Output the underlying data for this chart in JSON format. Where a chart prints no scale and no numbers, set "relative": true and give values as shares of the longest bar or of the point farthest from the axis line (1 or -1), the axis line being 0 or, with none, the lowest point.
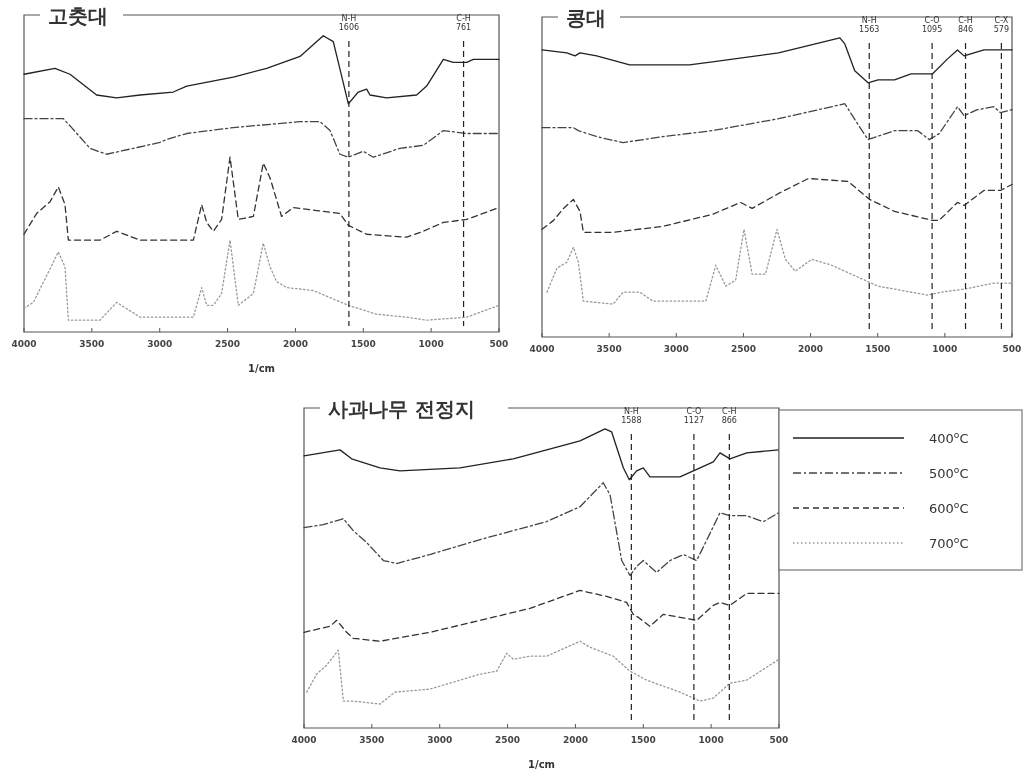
{
  "chart_data": [
    {
      "type": "line",
      "title": "고춧대",
      "xlabel": "1/cm",
      "relative": true,
      "xlim": [
        4000,
        500
      ],
      "xticks": [
        4000,
        3500,
        3000,
        2500,
        2000,
        1500,
        1000,
        500
      ],
      "legend": false,
      "ref_lines": [
        {
          "axis": "x",
          "value": 1606,
          "label": "N-H\n1606",
          "color": "#222222",
          "line_style": "dashed"
        },
        {
          "axis": "x",
          "value": 761,
          "label": "C-H\n761",
          "color": "#222222",
          "line_style": "dashed"
        }
      ],
      "series": [
        {
          "color": "#222222",
          "line_style": "solid",
          "x": [
            4000,
            3772,
            3661,
            3465,
            3317,
            3145,
            2900,
            2801,
            2458,
            2212,
            1966,
            1795,
            1721,
            1610,
            1537,
            1475,
            1451,
            1328,
            1107,
            1033,
            910,
            837,
            738,
            689,
            500
          ],
          "values": [
            0.87,
            0.89,
            0.87,
            0.8,
            0.79,
            0.8,
            0.81,
            0.83,
            0.86,
            0.89,
            0.93,
            1.0,
            0.98,
            0.77,
            0.81,
            0.82,
            0.8,
            0.79,
            0.8,
            0.83,
            0.92,
            0.91,
            0.91,
            0.92,
            0.92
          ]
        },
        {
          "color": "#444444",
          "line_style": "dashdot",
          "x": [
            4000,
            3710,
            3649,
            3514,
            3391,
            3194,
            2998,
            2949,
            2801,
            2458,
            1966,
            1819,
            1745,
            1672,
            1610,
            1500,
            1426,
            1230,
            1058,
            910,
            738,
            500
          ],
          "values": [
            0.72,
            0.72,
            0.69,
            0.62,
            0.6,
            0.62,
            0.64,
            0.65,
            0.67,
            0.69,
            0.71,
            0.71,
            0.68,
            0.6,
            0.59,
            0.61,
            0.59,
            0.62,
            0.63,
            0.68,
            0.67,
            0.67
          ]
        },
        {
          "color": "#333333",
          "line_style": "dashed",
          "x": [
            4000,
            3907,
            3808,
            3747,
            3698,
            3673,
            3440,
            3317,
            3145,
            2752,
            2691,
            2654,
            2605,
            2544,
            2482,
            2421,
            2310,
            2237,
            2187,
            2102,
            2016,
            1844,
            1672,
            1610,
            1475,
            1180,
            1058,
            910,
            738,
            500
          ],
          "values": [
            0.33,
            0.4,
            0.44,
            0.49,
            0.43,
            0.31,
            0.31,
            0.34,
            0.31,
            0.31,
            0.43,
            0.37,
            0.34,
            0.38,
            0.59,
            0.38,
            0.39,
            0.57,
            0.52,
            0.39,
            0.42,
            0.41,
            0.4,
            0.36,
            0.33,
            0.32,
            0.34,
            0.37,
            0.38,
            0.42
          ]
        },
        {
          "color": "#999999",
          "line_style": "dotted",
          "x": [
            4000,
            3931,
            3833,
            3747,
            3698,
            3673,
            3440,
            3317,
            3145,
            2752,
            2691,
            2654,
            2605,
            2544,
            2482,
            2421,
            2310,
            2237,
            2187,
            2139,
            2065,
            1868,
            1610,
            1402,
            1180,
            1033,
            738,
            500
          ],
          "values": [
            0.08,
            0.1,
            0.19,
            0.27,
            0.22,
            0.04,
            0.04,
            0.1,
            0.05,
            0.05,
            0.15,
            0.09,
            0.09,
            0.13,
            0.31,
            0.09,
            0.13,
            0.3,
            0.22,
            0.17,
            0.15,
            0.14,
            0.09,
            0.06,
            0.05,
            0.04,
            0.05,
            0.09
          ]
        }
      ]
    },
    {
      "type": "line",
      "title": "콩대",
      "relative": true,
      "xlim": [
        4000,
        500
      ],
      "xticks": [
        4000,
        3500,
        3000,
        2500,
        2000,
        1500,
        1000,
        500
      ],
      "legend": false,
      "ref_lines": [
        {
          "axis": "x",
          "value": 1563,
          "label": "N-H\n1563",
          "color": "#222222",
          "line_style": "dashed"
        },
        {
          "axis": "x",
          "value": 1095,
          "label": "C-O\n1095",
          "color": "#222222",
          "line_style": "dashed"
        },
        {
          "axis": "x",
          "value": 846,
          "label": "C-H\n846",
          "color": "#222222",
          "line_style": "dashed"
        },
        {
          "axis": "x",
          "value": 579,
          "label": "C-X\n579",
          "color": "#222222",
          "line_style": "dashed"
        }
      ],
      "series": [
        {
          "color": "#222222",
          "line_style": "solid",
          "x": [
            4000,
            3815,
            3754,
            3717,
            3593,
            3347,
            3100,
            2903,
            2731,
            2238,
            1782,
            1745,
            1671,
            1572,
            1498,
            1375,
            1252,
            1091,
            980,
            906,
            857,
            709,
            500
          ],
          "values": [
            0.96,
            0.95,
            0.94,
            0.95,
            0.94,
            0.91,
            0.91,
            0.91,
            0.92,
            0.95,
            1.0,
            0.98,
            0.89,
            0.85,
            0.86,
            0.86,
            0.88,
            0.88,
            0.93,
            0.96,
            0.94,
            0.96,
            0.96
          ]
        },
        {
          "color": "#444444",
          "line_style": "dashdot",
          "x": [
            4000,
            3840,
            3766,
            3729,
            3593,
            3396,
            3100,
            2731,
            2238,
            1745,
            1646,
            1572,
            1375,
            1202,
            1116,
            1042,
            906,
            857,
            758,
            635,
            586,
            500
          ],
          "values": [
            0.7,
            0.7,
            0.7,
            0.69,
            0.67,
            0.65,
            0.67,
            0.69,
            0.73,
            0.78,
            0.71,
            0.66,
            0.69,
            0.69,
            0.66,
            0.68,
            0.77,
            0.74,
            0.76,
            0.77,
            0.75,
            0.76
          ]
        },
        {
          "color": "#333333",
          "line_style": "dashed",
          "x": [
            4000,
            3914,
            3840,
            3766,
            3717,
            3692,
            3470,
            3100,
            2731,
            2521,
            2435,
            2238,
            2016,
            1720,
            1560,
            1375,
            1091,
            1042,
            906,
            857,
            709,
            586,
            500
          ],
          "values": [
            0.36,
            0.39,
            0.43,
            0.46,
            0.42,
            0.35,
            0.35,
            0.37,
            0.41,
            0.45,
            0.43,
            0.48,
            0.53,
            0.52,
            0.46,
            0.42,
            0.39,
            0.39,
            0.45,
            0.44,
            0.49,
            0.49,
            0.51
          ]
        },
        {
          "color": "#999999",
          "line_style": "dotted",
          "x": [
            3963,
            3889,
            3815,
            3766,
            3729,
            3692,
            3470,
            3396,
            3273,
            3174,
            2780,
            2706,
            2632,
            2558,
            2496,
            2435,
            2336,
            2250,
            2188,
            2114,
            1991,
            1843,
            1597,
            1498,
            1128,
            1030,
            857,
            635,
            500
          ],
          "values": [
            0.15,
            0.23,
            0.25,
            0.3,
            0.25,
            0.12,
            0.11,
            0.15,
            0.15,
            0.12,
            0.12,
            0.24,
            0.17,
            0.19,
            0.36,
            0.21,
            0.21,
            0.36,
            0.26,
            0.22,
            0.26,
            0.24,
            0.19,
            0.17,
            0.14,
            0.15,
            0.16,
            0.18,
            0.18
          ]
        }
      ]
    },
    {
      "type": "line",
      "title": "사과나무 전정지",
      "xlabel": "1/cm",
      "relative": true,
      "xlim": [
        4000,
        500
      ],
      "xticks": [
        4000,
        3500,
        3000,
        2500,
        2000,
        1500,
        1000,
        500
      ],
      "legend": "right",
      "ref_lines": [
        {
          "axis": "x",
          "value": 1588,
          "label": "N-H\n1588",
          "color": "#222222",
          "line_style": "dashed"
        },
        {
          "axis": "x",
          "value": 1127,
          "label": "C-O\n1127",
          "color": "#222222",
          "line_style": "dashed"
        },
        {
          "axis": "x",
          "value": 866,
          "label": "C-H\n866",
          "color": "#222222",
          "line_style": "dashed"
        }
      ],
      "series": [
        {
          "name": "400$^{o}$C",
          "color": "#222222",
          "line_style": "solid",
          "x": [
            4000,
            3735,
            3649,
            3440,
            3293,
            2851,
            2458,
            1966,
            1782,
            1733,
            1647,
            1603,
            1549,
            1500,
            1451,
            1230,
            1131,
            984,
            935,
            861,
            738,
            500
          ],
          "values": [
            0.91,
            0.93,
            0.9,
            0.87,
            0.86,
            0.87,
            0.9,
            0.96,
            1.0,
            0.99,
            0.87,
            0.83,
            0.86,
            0.87,
            0.84,
            0.84,
            0.86,
            0.89,
            0.92,
            0.9,
            0.92,
            0.93
          ]
        },
        {
          "name": "500$^{o}$C",
          "color": "#444444",
          "line_style": "dashdot",
          "x": [
            4000,
            3858,
            3710,
            3637,
            3538,
            3415,
            3317,
            3072,
            2703,
            2212,
            1966,
            1795,
            1745,
            1659,
            1598,
            1549,
            1500,
            1402,
            1303,
            1205,
            1107,
            1009,
            935,
            861,
            738,
            616,
            500
          ],
          "values": [
            0.67,
            0.68,
            0.7,
            0.66,
            0.62,
            0.56,
            0.55,
            0.58,
            0.63,
            0.69,
            0.74,
            0.82,
            0.78,
            0.56,
            0.51,
            0.54,
            0.56,
            0.52,
            0.56,
            0.58,
            0.56,
            0.65,
            0.72,
            0.71,
            0.71,
            0.69,
            0.72
          ]
        },
        {
          "name": "600$^{o}$C",
          "color": "#333333",
          "line_style": "dashed",
          "x": [
            4000,
            3808,
            3759,
            3686,
            3637,
            3440,
            3072,
            2703,
            2335,
            1966,
            1770,
            1623,
            1574,
            1537,
            1451,
            1352,
            1230,
            1107,
            984,
            935,
            861,
            738,
            500
          ],
          "values": [
            0.32,
            0.34,
            0.36,
            0.32,
            0.3,
            0.29,
            0.32,
            0.36,
            0.4,
            0.46,
            0.44,
            0.42,
            0.38,
            0.37,
            0.34,
            0.38,
            0.37,
            0.36,
            0.41,
            0.42,
            0.41,
            0.45,
            0.45
          ]
        },
        {
          "name": "700$^{o}$C",
          "color": "#999999",
          "line_style": "dotted",
          "x": [
            3980,
            3907,
            3833,
            3747,
            3710,
            3637,
            3440,
            3330,
            3072,
            2703,
            2580,
            2507,
            2458,
            2335,
            2212,
            1966,
            1893,
            1721,
            1598,
            1475,
            1230,
            1082,
            984,
            861,
            738,
            500
          ],
          "values": [
            0.12,
            0.18,
            0.21,
            0.26,
            0.09,
            0.09,
            0.08,
            0.12,
            0.13,
            0.18,
            0.19,
            0.25,
            0.23,
            0.24,
            0.24,
            0.29,
            0.27,
            0.24,
            0.19,
            0.16,
            0.12,
            0.09,
            0.1,
            0.15,
            0.16,
            0.23
          ]
        }
      ]
    }
  ]
}
